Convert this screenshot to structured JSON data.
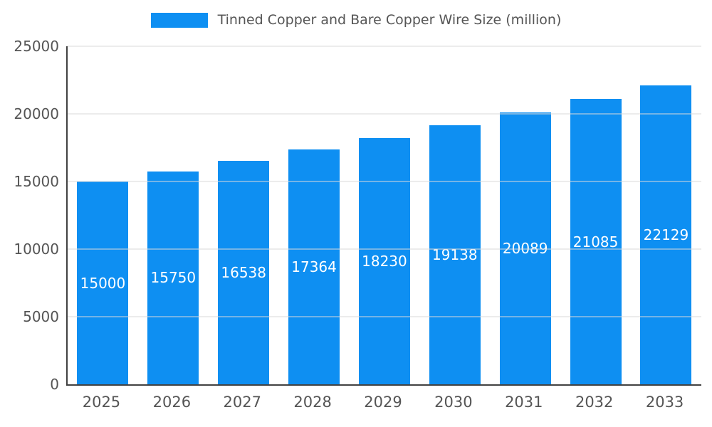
{
  "chart_data": {
    "type": "bar",
    "title": "Tinned Copper and Bare Copper Wire Size (million)",
    "categories": [
      "2025",
      "2026",
      "2027",
      "2028",
      "2029",
      "2030",
      "2031",
      "2032",
      "2033"
    ],
    "values": [
      15000,
      15750,
      16538,
      17364,
      18230,
      19138,
      20089,
      21085,
      22129
    ],
    "xlabel": "",
    "ylabel": "",
    "ylim": [
      0,
      25000
    ],
    "yticks": [
      0,
      5000,
      10000,
      15000,
      20000,
      25000
    ],
    "grid": true,
    "legend_position": "top-center",
    "bar_color": "#0e8ff2",
    "bar_label_color": "#ffffff",
    "axis_color": "#424242",
    "grid_color": "#d9d9d9",
    "tick_text_color": "#555555"
  }
}
